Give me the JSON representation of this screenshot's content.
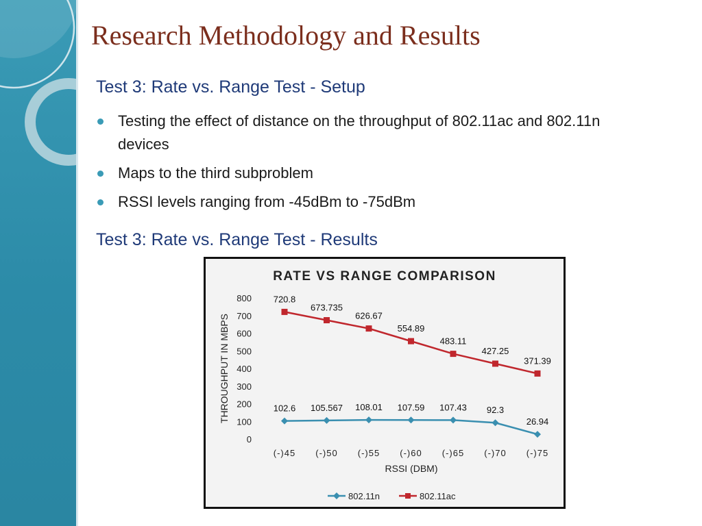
{
  "slide": {
    "title": "Research Methodology and Results",
    "setup_heading": "Test 3: Rate vs. Range Test - Setup",
    "bullets": [
      "Testing the effect of distance on the throughput of 802.11ac and 802.11n devices",
      "Maps to the third subproblem",
      "RSSI levels ranging from -45dBm to -75dBm"
    ],
    "results_heading": "Test 3: Rate vs. Range Test - Results"
  },
  "colors": {
    "accent_teal": "#3a9bb6",
    "title_brown": "#7b2e1d",
    "heading_navy": "#1f3a78",
    "series_802_11n": "#3a8fb0",
    "series_802_11ac": "#c0272d"
  },
  "chart_data": {
    "type": "line",
    "title": "RATE VS RANGE COMPARISON",
    "xlabel": "RSSI (DBM)",
    "ylabel": "THROUGHPUT IN MBPS",
    "categories": [
      "(-)45",
      "(-)50",
      "(-)55",
      "(-)60",
      "(-)65",
      "(-)70",
      "(-)75"
    ],
    "ylim": [
      0,
      800
    ],
    "yticks": [
      0,
      100,
      200,
      300,
      400,
      500,
      600,
      700,
      800
    ],
    "grid": false,
    "legend_position": "bottom",
    "series": [
      {
        "name": "802.11n",
        "color": "#3a8fb0",
        "marker": "diamond",
        "values": [
          102.6,
          105.567,
          108.01,
          107.59,
          107.43,
          92.3,
          26.94
        ],
        "labels": [
          "102.6",
          "105.567",
          "108.01",
          "107.59",
          "107.43",
          "92.3",
          "26.94"
        ]
      },
      {
        "name": "802.11ac",
        "color": "#c0272d",
        "marker": "square",
        "values": [
          720.8,
          673.735,
          626.67,
          554.89,
          483.11,
          427.25,
          371.39
        ],
        "labels": [
          "720.8",
          "673.735",
          "626.67",
          "554.89",
          "483.11",
          "427.25",
          "371.39"
        ]
      }
    ]
  }
}
